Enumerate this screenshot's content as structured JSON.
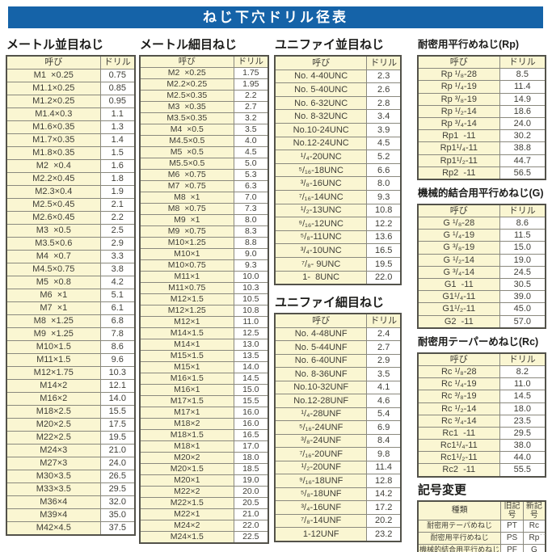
{
  "page_title": "ねじ下穴ドリル径表",
  "colors": {
    "header_bar": "#1563a8",
    "cell_cream": "#faf6d2",
    "grid_line": "#8a897e",
    "outer_border": "#53524a",
    "text": "#3f3e37"
  },
  "tables": {
    "metric_coarse": {
      "title": "メートル並目ねじ",
      "headers": [
        "呼び",
        "ドリル"
      ],
      "rows": [
        [
          "M1  ×0.25",
          "0.75"
        ],
        [
          "M1.1×0.25",
          "0.85"
        ],
        [
          "M1.2×0.25",
          "0.95"
        ],
        [
          "M1.4×0.3",
          "1.1"
        ],
        [
          "M1.6×0.35",
          "1.3"
        ],
        [
          "M1.7×0.35",
          "1.4"
        ],
        [
          "M1.8×0.35",
          "1.5"
        ],
        [
          "M2  ×0.4",
          "1.6"
        ],
        [
          "M2.2×0.45",
          "1.8"
        ],
        [
          "M2.3×0.4",
          "1.9"
        ],
        [
          "M2.5×0.45",
          "2.1"
        ],
        [
          "M2.6×0.45",
          "2.2"
        ],
        [
          "M3  ×0.5",
          "2.5"
        ],
        [
          "M3.5×0.6",
          "2.9"
        ],
        [
          "M4  ×0.7",
          "3.3"
        ],
        [
          "M4.5×0.75",
          "3.8"
        ],
        [
          "M5  ×0.8",
          "4.2"
        ],
        [
          "M6  ×1",
          "5.1"
        ],
        [
          "M7  ×1",
          "6.1"
        ],
        [
          "M8  ×1.25",
          "6.8"
        ],
        [
          "M9  ×1.25",
          "7.8"
        ],
        [
          "M10×1.5",
          "8.6"
        ],
        [
          "M11×1.5",
          "9.6"
        ],
        [
          "M12×1.75",
          "10.3"
        ],
        [
          "M14×2",
          "12.1"
        ],
        [
          "M16×2",
          "14.0"
        ],
        [
          "M18×2.5",
          "15.5"
        ],
        [
          "M20×2.5",
          "17.5"
        ],
        [
          "M22×2.5",
          "19.5"
        ],
        [
          "M24×3",
          "21.0"
        ],
        [
          "M27×3",
          "24.0"
        ],
        [
          "M30×3.5",
          "26.5"
        ],
        [
          "M33×3.5",
          "29.5"
        ],
        [
          "M36×4",
          "32.0"
        ],
        [
          "M39×4",
          "35.0"
        ],
        [
          "M42×4.5",
          "37.5"
        ]
      ]
    },
    "metric_fine": {
      "title": "メートル細目ねじ",
      "headers": [
        "呼び",
        "ドリル"
      ],
      "rows": [
        [
          "M2  ×0.25",
          "1.75"
        ],
        [
          "M2.2×0.25",
          "1.95"
        ],
        [
          "M2.5×0.35",
          "2.2"
        ],
        [
          "M3  ×0.35",
          "2.7"
        ],
        [
          "M3.5×0.35",
          "3.2"
        ],
        [
          "M4  ×0.5",
          "3.5"
        ],
        [
          "M4.5×0.5",
          "4.0"
        ],
        [
          "M5  ×0.5",
          "4.5"
        ],
        [
          "M5.5×0.5",
          "5.0"
        ],
        [
          "M6  ×0.75",
          "5.3"
        ],
        [
          "M7  ×0.75",
          "6.3"
        ],
        [
          "M8  ×1",
          "7.0"
        ],
        [
          "M8  ×0.75",
          "7.3"
        ],
        [
          "M9  ×1",
          "8.0"
        ],
        [
          "M9  ×0.75",
          "8.3"
        ],
        [
          "M10×1.25",
          "8.8"
        ],
        [
          "M10×1",
          "9.0"
        ],
        [
          "M10×0.75",
          "9.3"
        ],
        [
          "M11×1",
          "10.0"
        ],
        [
          "M11×0.75",
          "10.3"
        ],
        [
          "M12×1.5",
          "10.5"
        ],
        [
          "M12×1.25",
          "10.8"
        ],
        [
          "M12×1",
          "11.0"
        ],
        [
          "M14×1.5",
          "12.5"
        ],
        [
          "M14×1",
          "13.0"
        ],
        [
          "M15×1.5",
          "13.5"
        ],
        [
          "M15×1",
          "14.0"
        ],
        [
          "M16×1.5",
          "14.5"
        ],
        [
          "M16×1",
          "15.0"
        ],
        [
          "M17×1.5",
          "15.5"
        ],
        [
          "M17×1",
          "16.0"
        ],
        [
          "M18×2",
          "16.0"
        ],
        [
          "M18×1.5",
          "16.5"
        ],
        [
          "M18×1",
          "17.0"
        ],
        [
          "M20×2",
          "18.0"
        ],
        [
          "M20×1.5",
          "18.5"
        ],
        [
          "M20×1",
          "19.0"
        ],
        [
          "M22×2",
          "20.0"
        ],
        [
          "M22×1.5",
          "20.5"
        ],
        [
          "M22×1",
          "21.0"
        ],
        [
          "M24×2",
          "22.0"
        ],
        [
          "M24×1.5",
          "22.5"
        ]
      ]
    },
    "unified_coarse": {
      "title": "ユニファイ並目ねじ",
      "headers": [
        "呼び",
        "ドリル"
      ],
      "rows": [
        [
          "No. 4-40UNC",
          "2.3"
        ],
        [
          "No. 5-40UNC",
          "2.6"
        ],
        [
          "No. 6-32UNC",
          "2.8"
        ],
        [
          "No. 8-32UNC",
          "3.4"
        ],
        [
          "No.10-24UNC",
          "3.9"
        ],
        [
          "No.12-24UNC",
          "4.5"
        ],
        [
          "¹/₄-20UNC",
          "5.2"
        ],
        [
          "⁵/₁₆-18UNC",
          "6.6"
        ],
        [
          "³/₈-16UNC",
          "8.0"
        ],
        [
          "⁷/₁₆-14UNC",
          "9.3"
        ],
        [
          "¹/₂-13UNC",
          "10.8"
        ],
        [
          "⁹/₁₆-12UNC",
          "12.2"
        ],
        [
          "⁵/₈-11UNC",
          "13.6"
        ],
        [
          "³/₄-10UNC",
          "16.5"
        ],
        [
          "⁷/₈- 9UNC",
          "19.5"
        ],
        [
          "1-  8UNC",
          "22.0"
        ]
      ]
    },
    "unified_fine": {
      "title": "ユニファイ細目ねじ",
      "headers": [
        "呼び",
        "ドリル"
      ],
      "rows": [
        [
          "No. 4-48UNF",
          "2.4"
        ],
        [
          "No. 5-44UNF",
          "2.7"
        ],
        [
          "No. 6-40UNF",
          "2.9"
        ],
        [
          "No. 8-36UNF",
          "3.5"
        ],
        [
          "No.10-32UNF",
          "4.1"
        ],
        [
          "No.12-28UNF",
          "4.6"
        ],
        [
          "¹/₄-28UNF",
          "5.4"
        ],
        [
          "⁵/₁₆-24UNF",
          "6.9"
        ],
        [
          "³/₈-24UNF",
          "8.4"
        ],
        [
          "⁷/₁₆-20UNF",
          "9.8"
        ],
        [
          "¹/₂-20UNF",
          "11.4"
        ],
        [
          "⁹/₁₆-18UNF",
          "12.8"
        ],
        [
          "⁵/₈-18UNF",
          "14.2"
        ],
        [
          "³/₄-16UNF",
          "17.2"
        ],
        [
          "⁷/₈-14UNF",
          "20.2"
        ],
        [
          "1-12UNF",
          "23.2"
        ]
      ]
    },
    "rp": {
      "title": "耐密用平行めねじ(Rp)",
      "headers": [
        "呼び",
        "ドリル"
      ],
      "rows": [
        [
          "Rp ¹/₈-28",
          "8.5"
        ],
        [
          "Rp ¹/₄-19",
          "11.4"
        ],
        [
          "Rp ³/₈-19",
          "14.9"
        ],
        [
          "Rp ¹/₂-14",
          "18.6"
        ],
        [
          "Rp ³/₄-14",
          "24.0"
        ],
        [
          "Rp1  -11",
          "30.2"
        ],
        [
          "Rp1¹/₄-11",
          "38.8"
        ],
        [
          "Rp1¹/₂-11",
          "44.7"
        ],
        [
          "Rp2  -11",
          "56.5"
        ]
      ]
    },
    "g": {
      "title": "機械的結合用平行めねじ(G)",
      "headers": [
        "呼び",
        "ドリル"
      ],
      "rows": [
        [
          "G ¹/₈-28",
          "8.6"
        ],
        [
          "G ¹/₄-19",
          "11.5"
        ],
        [
          "G ³/₈-19",
          "15.0"
        ],
        [
          "G ¹/₂-14",
          "19.0"
        ],
        [
          "G ³/₄-14",
          "24.5"
        ],
        [
          "G1  -11",
          "30.5"
        ],
        [
          "G1¹/₄-11",
          "39.0"
        ],
        [
          "G1¹/₂-11",
          "45.0"
        ],
        [
          "G2  -11",
          "57.0"
        ]
      ]
    },
    "rc": {
      "title": "耐密用テーパーめねじ(Rc)",
      "headers": [
        "呼び",
        "ドリル"
      ],
      "rows": [
        [
          "Rc ¹/₈-28",
          "8.2"
        ],
        [
          "Rc ¹/₄-19",
          "11.0"
        ],
        [
          "Rc ³/₈-19",
          "14.5"
        ],
        [
          "Rc ¹/₂-14",
          "18.0"
        ],
        [
          "Rc ³/₄-14",
          "23.5"
        ],
        [
          "Rc1  -11",
          "29.5"
        ],
        [
          "Rc1¹/₄-11",
          "38.0"
        ],
        [
          "Rc1¹/₂-11",
          "44.0"
        ],
        [
          "Rc2  -11",
          "55.5"
        ]
      ]
    },
    "symbol_change": {
      "title": "記号変更",
      "headers": [
        "種類",
        "旧記号",
        "新記号"
      ],
      "rows": [
        [
          "耐密用テーパめねじ",
          "PT",
          "Rc"
        ],
        [
          "耐密用平行めねじ",
          "PS",
          "Rp"
        ],
        [
          "機械的結合用平行めねじ",
          "PF",
          "G"
        ]
      ]
    }
  },
  "footer_mark": "--"
}
